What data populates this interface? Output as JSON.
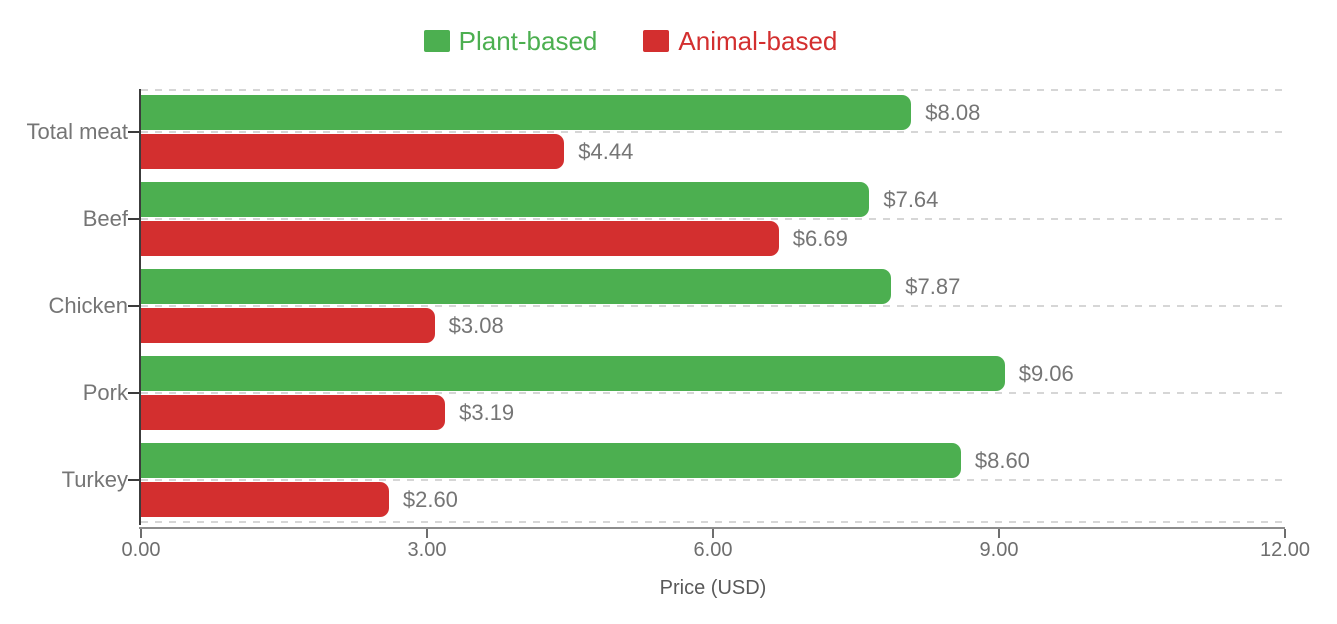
{
  "legend": {
    "items": [
      {
        "label": "Plant-based",
        "color": "#4CAF50"
      },
      {
        "label": "Animal-based",
        "color": "#D32F2F"
      }
    ]
  },
  "chart_data": {
    "type": "bar",
    "orientation": "horizontal",
    "categories": [
      "Total meat",
      "Beef",
      "Chicken",
      "Pork",
      "Turkey"
    ],
    "series": [
      {
        "name": "Plant-based",
        "color": "#4CAF50",
        "values": [
          8.08,
          7.64,
          7.87,
          9.06,
          8.6
        ],
        "labels": [
          "$8.08",
          "$7.64",
          "$7.87",
          "$9.06",
          "$8.60"
        ]
      },
      {
        "name": "Animal-based",
        "color": "#D32F2F",
        "values": [
          4.44,
          6.69,
          3.08,
          3.19,
          2.6
        ],
        "labels": [
          "$4.44",
          "$6.69",
          "$3.08",
          "$3.19",
          "$2.60"
        ]
      }
    ],
    "xlabel": "Price (USD)",
    "xlim": [
      0,
      12
    ],
    "xticks": [
      {
        "value": 0,
        "label": "0.00"
      },
      {
        "value": 3,
        "label": "3.00"
      },
      {
        "value": 6,
        "label": "6.00"
      },
      {
        "value": 9,
        "label": "9.00"
      },
      {
        "value": 12,
        "label": "12.00"
      }
    ],
    "grid": "dashed horizontal lines at plot edges and category centers",
    "legend_position": "top-center",
    "title": ""
  }
}
